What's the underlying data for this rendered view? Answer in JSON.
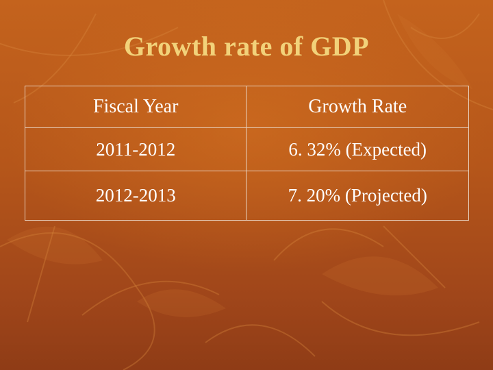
{
  "slide": {
    "title": "Growth rate of GDP"
  },
  "table": {
    "headers": [
      "Fiscal Year",
      "Growth Rate"
    ],
    "rows": [
      [
        "2011-2012",
        "6. 32% (Expected)"
      ],
      [
        "2012-2013",
        "7. 20% (Projected)"
      ]
    ]
  },
  "colors": {
    "background": "#b5561a",
    "title": "#f2d27a",
    "text": "#ffffff",
    "border": "#e8d2c0"
  }
}
